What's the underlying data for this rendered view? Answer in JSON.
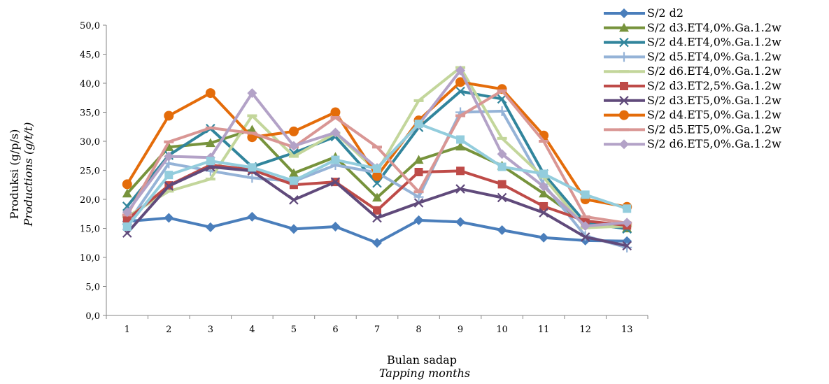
{
  "chart_data": {
    "type": "line",
    "title": "",
    "xlabel": "Bulan sadap",
    "xlabel_translation": "Tapping months",
    "ylabel": "Produksi (g/p/s)",
    "ylabel_translation": "Productions (g/t/t)",
    "categories": [
      "1",
      "2",
      "3",
      "4",
      "5",
      "6",
      "7",
      "8",
      "9",
      "10",
      "11",
      "12",
      "13"
    ],
    "ylim": [
      0,
      50
    ],
    "yticks": [
      "0,0",
      "5,0",
      "10,0",
      "15,0",
      "20,0",
      "25,0",
      "30,0",
      "35,0",
      "40,0",
      "45,0",
      "50,0"
    ],
    "grid": false,
    "legend_position": "right",
    "series": [
      {
        "name": "S/2 d2",
        "color": "#4a7ebb",
        "marker": "diamond",
        "values": [
          16.2,
          16.8,
          15.2,
          17.0,
          14.9,
          15.3,
          12.5,
          16.4,
          16.1,
          14.7,
          13.4,
          12.9,
          12.8
        ]
      },
      {
        "name": "S/2 d3.ET4,0%.Ga.1.2w",
        "color": "#77933c",
        "marker": "triangle",
        "values": [
          21.0,
          29.0,
          29.7,
          32.0,
          24.5,
          27.3,
          20.3,
          26.8,
          29.1,
          25.8,
          21.0,
          15.8,
          15.0
        ]
      },
      {
        "name": "S/2 d4.ET4,0%.Ga.1.2w",
        "color": "#31859c",
        "marker": "x",
        "values": [
          18.8,
          27.6,
          32.2,
          25.6,
          28.0,
          30.8,
          22.8,
          32.4,
          38.6,
          37.3,
          24.4,
          16.0,
          14.9
        ]
      },
      {
        "name": "S/2 d5.ET4,0%.Ga.1.2w",
        "color": "#95b3d7",
        "marker": "plus",
        "values": [
          15.7,
          26.2,
          24.9,
          23.7,
          23.1,
          25.9,
          24.6,
          20.4,
          35.0,
          35.2,
          22.6,
          13.7,
          11.7
        ]
      },
      {
        "name": "S/2 d6.ET4,0%.Ga.1.2w",
        "color": "#c3d69b",
        "marker": "dash",
        "values": [
          17.0,
          21.4,
          23.5,
          34.4,
          27.4,
          31.4,
          24.8,
          37.0,
          42.7,
          30.5,
          23.8,
          15.1,
          15.4
        ]
      },
      {
        "name": "S/2 d3.ET2,5%.Ga.1.2w",
        "color": "#be4b48",
        "marker": "square",
        "values": [
          16.5,
          22.4,
          25.9,
          25.1,
          22.5,
          23.0,
          18.1,
          24.7,
          24.9,
          22.6,
          18.8,
          16.3,
          15.5
        ]
      },
      {
        "name": "S/2 d3.ET5,0%.Ga.1.2w",
        "color": "#604a7b",
        "marker": "x",
        "values": [
          14.2,
          22.3,
          25.6,
          24.9,
          19.9,
          23.0,
          16.8,
          19.4,
          21.8,
          20.3,
          17.7,
          13.5,
          12.0
        ]
      },
      {
        "name": "S/2 d4.ET5,0%.Ga.1.2w",
        "color": "#e46c0a",
        "marker": "circle",
        "values": [
          22.6,
          34.4,
          38.3,
          30.7,
          31.7,
          35.0,
          24.0,
          33.6,
          40.2,
          39.0,
          31.0,
          20.0,
          18.7
        ]
      },
      {
        "name": "S/2 d5.ET5,0%.Ga.1.2w",
        "color": "#d99694",
        "marker": "dash",
        "values": [
          17.3,
          29.9,
          32.3,
          31.4,
          29.0,
          34.1,
          29.0,
          21.3,
          34.4,
          38.7,
          30.0,
          17.0,
          15.9
        ]
      },
      {
        "name": "S/2 d6.ET5,0%.Ga.1.2w",
        "color": "#b3a2c7",
        "marker": "diamond",
        "values": [
          17.8,
          27.4,
          27.2,
          38.3,
          29.2,
          31.5,
          25.4,
          32.9,
          42.2,
          27.8,
          22.2,
          15.4,
          16.0
        ]
      },
      {
        "name": "",
        "color": "#93cddd",
        "marker": "square",
        "values": [
          15.3,
          24.2,
          26.6,
          25.5,
          23.2,
          26.8,
          25.3,
          33.0,
          30.3,
          25.6,
          24.4,
          20.8,
          18.4
        ]
      }
    ]
  }
}
